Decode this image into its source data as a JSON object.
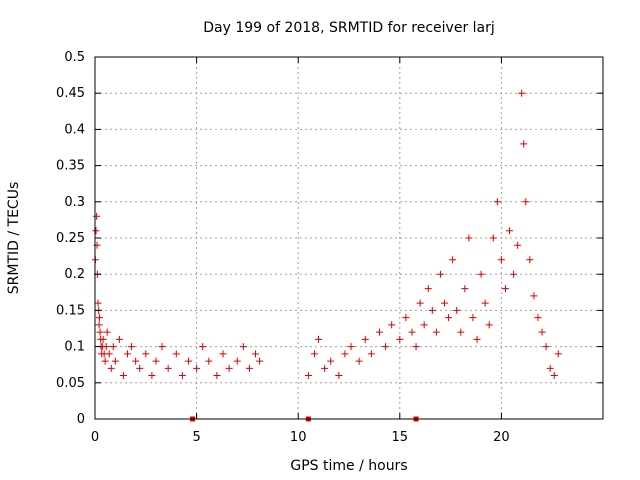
{
  "chart_data": {
    "type": "scatter",
    "title": "Day 199 of 2018, SRMTID for receiver larj",
    "xlabel": "GPS time / hours",
    "ylabel": "SRMTID / TECUs",
    "xlim": [
      0,
      25
    ],
    "ylim": [
      0,
      0.5
    ],
    "grid": true,
    "xticks": [
      0,
      5,
      10,
      15,
      20
    ],
    "xtick_labels": [
      "0",
      "5",
      "10",
      "15",
      "20"
    ],
    "yticks": [
      0,
      0.05,
      0.1,
      0.15,
      0.2,
      0.25,
      0.3,
      0.35,
      0.4,
      0.45,
      0.5
    ],
    "ytick_labels": [
      "0",
      "0.05",
      "0.1",
      "0.15",
      "0.2",
      "0.25",
      "0.3",
      "0.35",
      "0.4",
      "0.45",
      "0.5"
    ],
    "marker": "+",
    "color": "#e00000",
    "series": [
      {
        "name": "SRMTID",
        "x": [
          0.02,
          0.05,
          0.08,
          0.1,
          0.12,
          0.15,
          0.18,
          0.2,
          0.22,
          0.25,
          0.28,
          0.3,
          0.33,
          0.36,
          0.4,
          0.45,
          0.5,
          0.55,
          0.6,
          0.7,
          0.8,
          0.9,
          1.0,
          1.2,
          1.4,
          1.6,
          1.8,
          2.0,
          2.2,
          2.5,
          2.8,
          3.0,
          3.3,
          3.6,
          4.0,
          4.3,
          4.6,
          5.0,
          5.3,
          5.6,
          6.0,
          6.3,
          6.6,
          7.0,
          7.3,
          7.6,
          7.9,
          8.1,
          10.5,
          10.8,
          11.0,
          11.3,
          11.6,
          12.0,
          12.3,
          12.6,
          13.0,
          13.3,
          13.6,
          14.0,
          14.3,
          14.6,
          15.0,
          15.3,
          15.6,
          15.8,
          16.0,
          16.2,
          16.4,
          16.6,
          16.8,
          17.0,
          17.2,
          17.4,
          17.6,
          17.8,
          18.0,
          18.2,
          18.4,
          18.6,
          18.8,
          19.0,
          19.2,
          19.4,
          19.6,
          19.8,
          20.0,
          20.2,
          20.4,
          20.6,
          20.8,
          21.0,
          21.1,
          21.2,
          21.4,
          21.6,
          21.8,
          22.0,
          22.2,
          22.4,
          22.6,
          22.8
        ],
        "y": [
          0.22,
          0.26,
          0.28,
          0.24,
          0.2,
          0.16,
          0.15,
          0.13,
          0.14,
          0.12,
          0.11,
          0.1,
          0.09,
          0.1,
          0.11,
          0.09,
          0.08,
          0.1,
          0.12,
          0.09,
          0.07,
          0.1,
          0.08,
          0.11,
          0.06,
          0.09,
          0.1,
          0.08,
          0.07,
          0.09,
          0.06,
          0.08,
          0.1,
          0.07,
          0.09,
          0.06,
          0.08,
          0.07,
          0.1,
          0.08,
          0.06,
          0.09,
          0.07,
          0.08,
          0.1,
          0.07,
          0.09,
          0.08,
          0.06,
          0.09,
          0.11,
          0.07,
          0.08,
          0.06,
          0.09,
          0.1,
          0.08,
          0.11,
          0.09,
          0.12,
          0.1,
          0.13,
          0.11,
          0.14,
          0.12,
          0.1,
          0.16,
          0.13,
          0.18,
          0.15,
          0.12,
          0.2,
          0.16,
          0.14,
          0.22,
          0.15,
          0.12,
          0.18,
          0.25,
          0.14,
          0.11,
          0.2,
          0.16,
          0.13,
          0.25,
          0.3,
          0.22,
          0.18,
          0.26,
          0.2,
          0.24,
          0.45,
          0.38,
          0.3,
          0.22,
          0.17,
          0.14,
          0.12,
          0.1,
          0.07,
          0.06,
          0.09
        ]
      }
    ],
    "gap_markers_x": [
      4.8,
      10.5,
      15.8
    ]
  }
}
